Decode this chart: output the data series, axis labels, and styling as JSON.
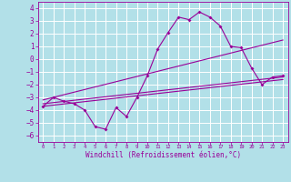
{
  "xlabel": "Windchill (Refroidissement éolien,°C)",
  "xlim": [
    -0.5,
    23.5
  ],
  "ylim": [
    -6.5,
    4.5
  ],
  "yticks": [
    -6,
    -5,
    -4,
    -3,
    -2,
    -1,
    0,
    1,
    2,
    3,
    4
  ],
  "xticks": [
    0,
    1,
    2,
    3,
    4,
    5,
    6,
    7,
    8,
    9,
    10,
    11,
    12,
    13,
    14,
    15,
    16,
    17,
    18,
    19,
    20,
    21,
    22,
    23
  ],
  "bg_color": "#b2e0e8",
  "grid_color": "#ffffff",
  "line_color": "#990099",
  "line1_x": [
    0,
    1,
    2,
    3,
    4,
    5,
    6,
    7,
    8,
    9,
    10,
    11,
    12,
    13,
    14,
    15,
    16,
    17,
    18,
    19,
    20,
    21,
    22,
    23
  ],
  "line1_y": [
    -3.7,
    -3.0,
    -3.3,
    -3.5,
    -4.0,
    -5.3,
    -5.5,
    -3.8,
    -4.5,
    -3.0,
    -1.3,
    0.8,
    2.1,
    3.3,
    3.1,
    3.7,
    3.3,
    2.6,
    1.0,
    0.9,
    -0.7,
    -2.0,
    -1.4,
    -1.3
  ],
  "line2_x": [
    0,
    23
  ],
  "line2_y": [
    -3.5,
    -1.4
  ],
  "line3_x": [
    0,
    23
  ],
  "line3_y": [
    -3.7,
    -1.6
  ],
  "line4_x": [
    0,
    23
  ],
  "line4_y": [
    -3.2,
    1.5
  ]
}
